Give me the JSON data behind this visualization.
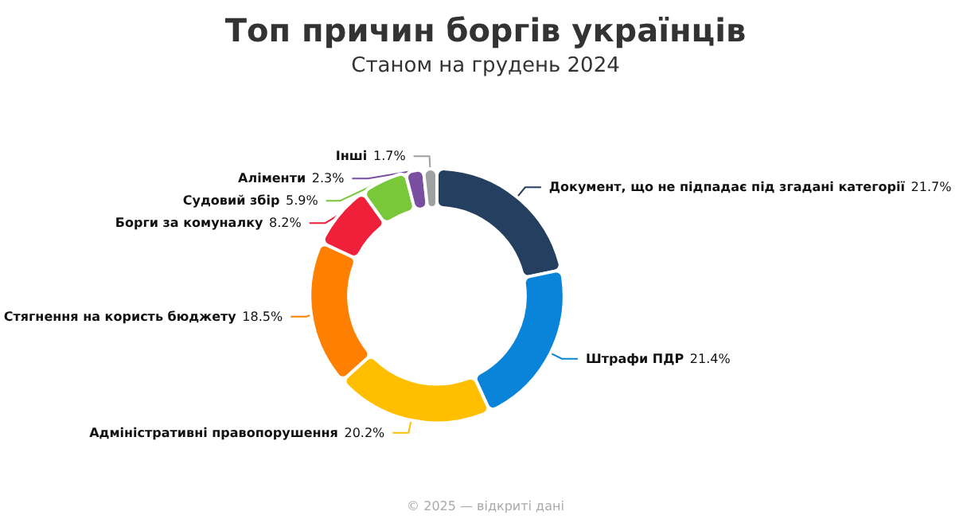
{
  "chart_data": {
    "type": "donut",
    "title": "Топ причин боргів українців",
    "subtitle": "Станом на грудень 2024",
    "categories": [
      "Документ, що не підпадає під згадані категорії",
      "Штрафи ПДР",
      "Адміністративні правопорушення",
      "Стягнення на користь бюджету",
      "Борги за комуналку",
      "Судовий збір",
      "Аліменти",
      "Інші"
    ],
    "values": [
      21.7,
      21.4,
      20.2,
      18.5,
      8.2,
      5.9,
      2.3,
      1.7
    ],
    "value_labels": [
      "21.7%",
      "21.4%",
      "20.2%",
      "18.5%",
      "8.2%",
      "5.9%",
      "2.3%",
      "1.7%"
    ],
    "colors": [
      "#243f60",
      "#0a84d8",
      "#ffbf00",
      "#ff8000",
      "#f0203a",
      "#78c83a",
      "#7a4ea0",
      "#a0a0a0"
    ],
    "annotations": [
      "© 2025 — відкриті дані"
    ]
  }
}
